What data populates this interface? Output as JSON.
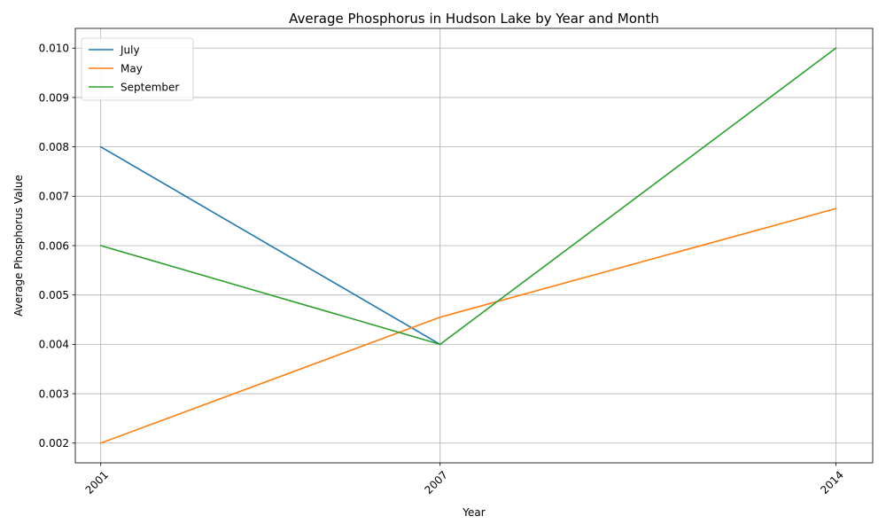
{
  "chart_data": {
    "type": "line",
    "title": "Average Phosphorus in Hudson Lake by Year and Month",
    "xlabel": "Year",
    "ylabel": "Average Phosphorus Value",
    "x": [
      2001,
      2007,
      2014
    ],
    "x_tick_labels": [
      "2001",
      "2007",
      "2014"
    ],
    "xlim": [
      2000.55,
      2014.65
    ],
    "ylim": [
      0.0016,
      0.0104
    ],
    "y_ticks": [
      0.002,
      0.003,
      0.004,
      0.005,
      0.006,
      0.007,
      0.008,
      0.009,
      0.01
    ],
    "y_tick_labels": [
      "0.002",
      "0.003",
      "0.004",
      "0.005",
      "0.006",
      "0.007",
      "0.008",
      "0.009",
      "0.010"
    ],
    "grid": true,
    "legend_position": "top-left",
    "series": [
      {
        "name": "July",
        "color": "#1f77b4",
        "points": [
          [
            2001,
            0.008
          ],
          [
            2007,
            0.004
          ]
        ]
      },
      {
        "name": "May",
        "color": "#ff7f0e",
        "points": [
          [
            2001,
            0.002
          ],
          [
            2007,
            0.00455
          ],
          [
            2014,
            0.00675
          ]
        ]
      },
      {
        "name": "September",
        "color": "#2ca02c",
        "points": [
          [
            2001,
            0.006
          ],
          [
            2007,
            0.004
          ],
          [
            2014,
            0.01
          ]
        ]
      }
    ]
  }
}
